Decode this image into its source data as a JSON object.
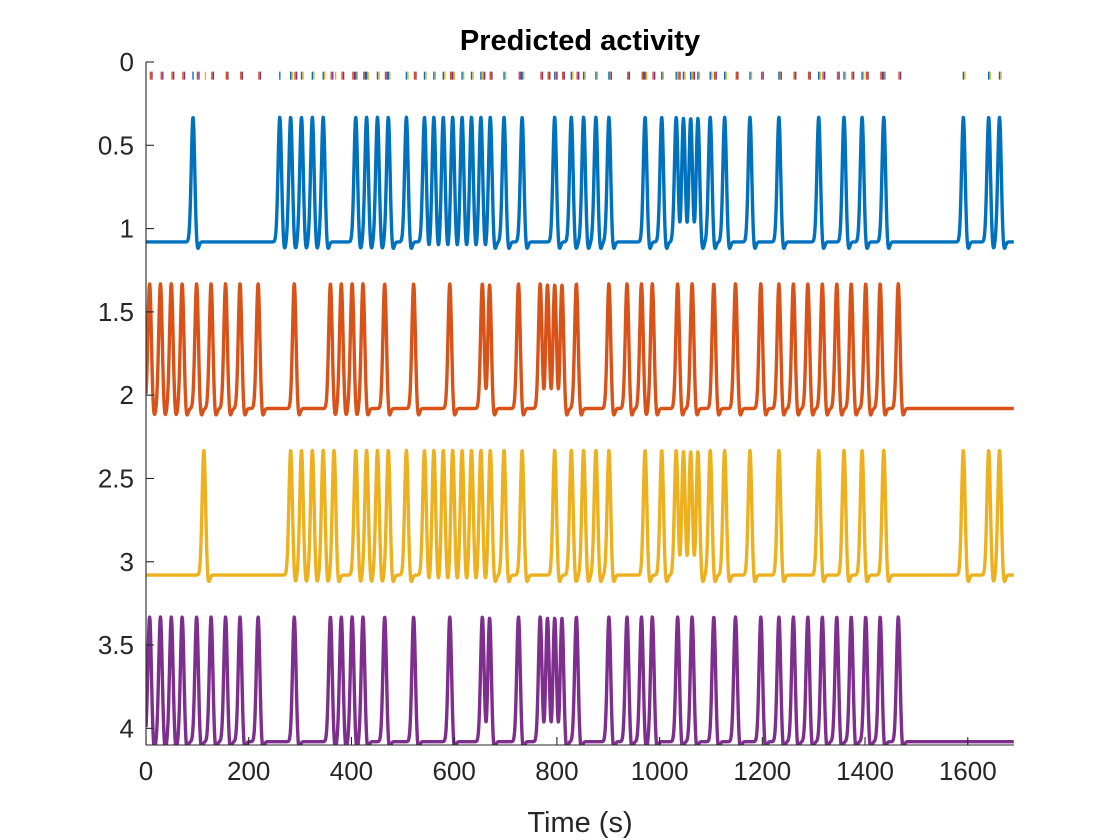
{
  "chart_data": {
    "type": "line",
    "title": "Predicted activity",
    "xlabel": "Time (s)",
    "ylabel": "",
    "xlim": [
      0,
      1690
    ],
    "ylim": [
      0,
      4.1
    ],
    "y_reversed": true,
    "grid": false,
    "legend": "none",
    "x_ticks": [
      0,
      200,
      400,
      600,
      800,
      1000,
      1200,
      1400,
      1600
    ],
    "x_tick_labels": [
      "0",
      "200",
      "400",
      "600",
      "800",
      "1000",
      "1200",
      "1400",
      "1600"
    ],
    "y_ticks": [
      0,
      0.5,
      1,
      1.5,
      2,
      2.5,
      3,
      3.5,
      4
    ],
    "y_tick_labels": [
      "0",
      "0.5",
      "1",
      "1.5",
      "2",
      "2.5",
      "3",
      "3.5",
      "4"
    ],
    "series": [
      {
        "color": "#0072BD",
        "baseline": 1.08,
        "peak_height": 0.75,
        "event_times": [
          65,
          185,
          200,
          215,
          230,
          245,
          290,
          305,
          320,
          335,
          360,
          385,
          398,
          411,
          424,
          437,
          450,
          463,
          476,
          495,
          520,
          565,
          588,
          605,
          622,
          640,
          690,
          713,
          733,
          743,
          753,
          763,
          780,
          800,
          835,
          875,
          930,
          965,
          990,
          1020,
          1130,
          1165,
          1180
        ]
      },
      {
        "color": "#D95319",
        "baseline": 2.08,
        "peak_height": 0.75,
        "event_times": [
          5,
          20,
          35,
          50,
          70,
          90,
          110,
          130,
          155,
          205,
          255,
          270,
          285,
          300,
          330,
          370,
          420,
          465,
          475,
          515,
          545,
          555,
          565,
          575,
          595,
          640,
          665,
          685,
          700,
          735,
          755,
          785,
          815,
          850,
          875,
          895,
          915,
          935,
          955,
          975,
          995,
          1015,
          1040
        ]
      },
      {
        "color": "#EDB120",
        "baseline": 3.08,
        "peak_height": 0.75,
        "event_times": [
          80,
          200,
          215,
          230,
          245,
          260,
          290,
          305,
          320,
          335,
          360,
          385,
          398,
          411,
          424,
          437,
          450,
          463,
          476,
          495,
          520,
          565,
          588,
          605,
          622,
          640,
          690,
          713,
          733,
          743,
          753,
          763,
          780,
          800,
          835,
          875,
          930,
          965,
          990,
          1020,
          1130,
          1165,
          1180
        ]
      },
      {
        "color": "#7E2F8E",
        "baseline": 4.08,
        "peak_height": 0.75,
        "event_times": [
          5,
          20,
          35,
          50,
          70,
          90,
          110,
          130,
          155,
          205,
          255,
          270,
          285,
          300,
          330,
          370,
          420,
          465,
          475,
          515,
          545,
          555,
          565,
          575,
          595,
          640,
          665,
          685,
          700,
          735,
          755,
          785,
          815,
          850,
          875,
          895,
          915,
          935,
          955,
          975,
          995,
          1015,
          1040
        ]
      }
    ],
    "event_marker_row": {
      "y": 0.1
    }
  }
}
